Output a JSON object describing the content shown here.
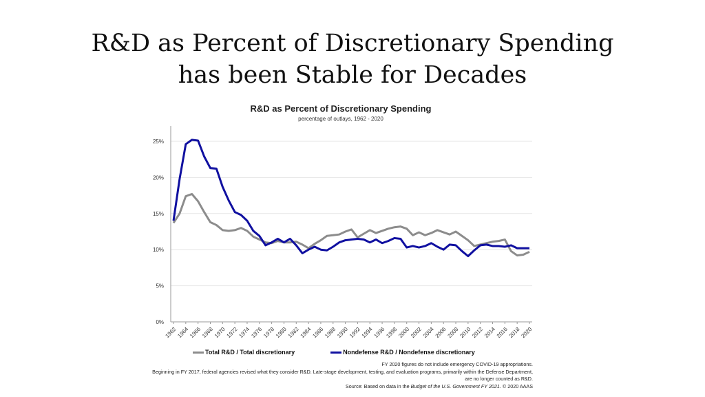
{
  "slide": {
    "title_line1": "R&D as Percent of Discretionary Spending",
    "title_line2": "has been Stable for Decades"
  },
  "chart_data": {
    "type": "line",
    "title": "R&D as Percent of Discretionary Spending",
    "subtitle": "percentage of outlays, 1962 - 2020",
    "x": [
      1962,
      1963,
      1964,
      1965,
      1966,
      1967,
      1968,
      1969,
      1970,
      1971,
      1972,
      1973,
      1974,
      1975,
      1976,
      1977,
      1978,
      1979,
      1980,
      1981,
      1982,
      1983,
      1984,
      1985,
      1986,
      1987,
      1988,
      1989,
      1990,
      1991,
      1992,
      1993,
      1994,
      1995,
      1996,
      1997,
      1998,
      1999,
      2000,
      2001,
      2002,
      2003,
      2004,
      2005,
      2006,
      2007,
      2008,
      2009,
      2010,
      2011,
      2012,
      2013,
      2014,
      2015,
      2016,
      2017,
      2018,
      2019,
      2020
    ],
    "xticks": [
      1962,
      1964,
      1966,
      1968,
      1970,
      1972,
      1974,
      1976,
      1978,
      1980,
      1982,
      1984,
      1986,
      1988,
      1990,
      1992,
      1994,
      1996,
      1998,
      2000,
      2002,
      2004,
      2006,
      2008,
      2010,
      2012,
      2014,
      2016,
      2018,
      2020
    ],
    "yticks": [
      "0%",
      "5%",
      "10%",
      "15%",
      "20%",
      "25%"
    ],
    "ylim": [
      0,
      27
    ],
    "grid": true,
    "legend_placement": "bottom",
    "series": [
      {
        "name": "Total R&D / Total discretionary",
        "color": "#8c8c8c",
        "values": [
          13.7,
          15.0,
          17.4,
          17.7,
          16.7,
          15.2,
          13.8,
          13.4,
          12.7,
          12.6,
          12.7,
          13.0,
          12.6,
          11.8,
          11.4,
          11.0,
          10.9,
          11.2,
          11.0,
          11.0,
          11.1,
          10.7,
          10.2,
          10.8,
          11.3,
          11.9,
          12.0,
          12.1,
          12.5,
          12.8,
          11.7,
          12.2,
          12.7,
          12.3,
          12.6,
          12.9,
          13.1,
          13.2,
          12.9,
          12.0,
          12.4,
          12.0,
          12.3,
          12.7,
          12.4,
          12.1,
          12.5,
          11.9,
          11.3,
          10.5,
          10.7,
          10.9,
          11.1,
          11.2,
          11.4,
          9.8,
          9.2,
          9.3,
          9.7
        ]
      },
      {
        "name": "Nondefense R&D / Nondefense discretionary",
        "color": "#1010a0",
        "values": [
          14.0,
          19.8,
          24.6,
          25.2,
          25.1,
          22.9,
          21.3,
          21.2,
          18.7,
          16.8,
          15.2,
          14.8,
          14.0,
          12.6,
          11.9,
          10.6,
          11.0,
          11.5,
          11.0,
          11.5,
          10.6,
          9.5,
          10.0,
          10.4,
          10.0,
          9.9,
          10.4,
          11.0,
          11.3,
          11.4,
          11.5,
          11.4,
          11.0,
          11.4,
          10.9,
          11.2,
          11.6,
          11.5,
          10.3,
          10.5,
          10.3,
          10.5,
          10.9,
          10.4,
          10.0,
          10.7,
          10.6,
          9.8,
          9.1,
          9.9,
          10.6,
          10.7,
          10.5,
          10.5,
          10.4,
          10.6,
          10.2,
          10.2,
          10.2
        ]
      }
    ],
    "notes": [
      "FY 2020  figures do not include emergency COVID-19 appropriations.",
      "Beginning in FY 2017,  federal agencies revised what they consider R&D. Late-stage development, testing, and evaluation programs, primarily within the Defense Department, are no longer counted as R&D."
    ],
    "source_prefix": "Source: Based on data in the ",
    "source_italic": "Budget of the U.S. Government FY 2021.",
    "source_suffix": "  © 2020  AAAS"
  }
}
